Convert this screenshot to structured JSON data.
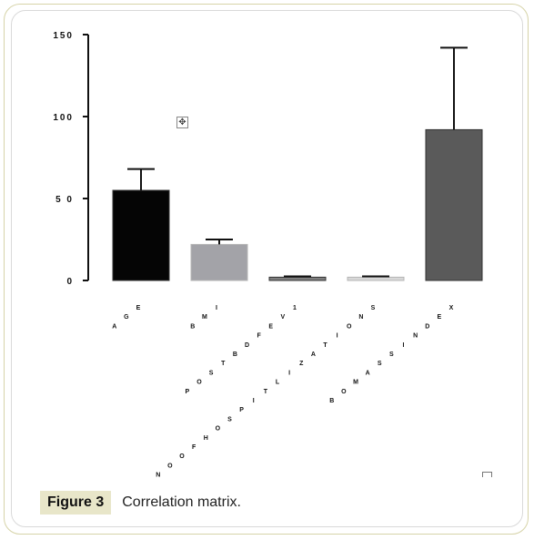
{
  "figure": {
    "label": "Figure 3",
    "caption": "Correlation matrix."
  },
  "chart_data": {
    "type": "bar",
    "categories": [
      "AGE",
      "BMI",
      "POSTBDFEV1",
      "NOOFHOSPITLIZATIONS",
      "BOMASSINDEX"
    ],
    "values": [
      55,
      22,
      2,
      2,
      92
    ],
    "error_upper": [
      68,
      25,
      2.5,
      2.5,
      142
    ],
    "colors": [
      "#050505",
      "#a3a3a8",
      "#7f7f7f",
      "#d8d8d8",
      "#5a5a5a"
    ],
    "yticks": [
      "0",
      "5 0",
      "100",
      "150"
    ],
    "ylim": [
      0,
      150
    ],
    "title": "",
    "xlabel": "",
    "ylabel": ""
  }
}
